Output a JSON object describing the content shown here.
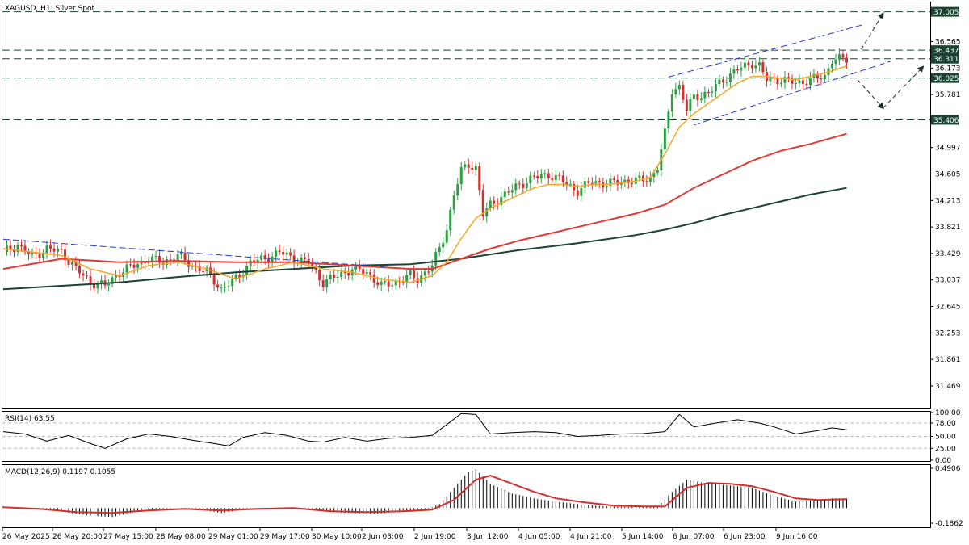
{
  "chart_title": "XAGUSD, H1:  Silver Spot",
  "colors": {
    "bull": "#2ea043",
    "bear": "#d32f2f",
    "ema_fast": "#f5a623",
    "ema_mid": "#e53935",
    "ema_slow": "#1b4332",
    "level_line": "#1b4332",
    "channel": "#2638c8",
    "macd_signal": "#d32f2f",
    "tag_bg": "#1b4332"
  },
  "price_axis": {
    "ylim": [
      31.17,
      37.12
    ],
    "ticks": [
      "36.565",
      "36.173",
      "35.781",
      "34.997",
      "34.605",
      "34.213",
      "33.821",
      "33.429",
      "33.037",
      "32.645",
      "32.253",
      "31.861",
      "31.469"
    ]
  },
  "level_tags": [
    "37.005",
    "36.437",
    "36.311",
    "36.025",
    "35.406"
  ],
  "x_axis": {
    "labels": [
      "26 May 2025",
      "26 May 20:00",
      "27 May 15:00",
      "28 May 08:00",
      "29 May 01:00",
      "29 May 17:00",
      "30 May 10:00",
      "2 Jun 03:00",
      "2 Jun 19:00",
      "3 Jun 12:00",
      "4 Jun 05:00",
      "4 Jun 21:00",
      "5 Jun 14:00",
      "6 Jun 07:00",
      "6 Jun 23:00",
      "9 Jun 16:00"
    ]
  },
  "rsi": {
    "title": "RSI(14) 63.55",
    "ylim": [
      0,
      100
    ],
    "ticks": [
      "100.00",
      "78.00",
      "50.00",
      "25.00",
      "0.00"
    ]
  },
  "macd": {
    "title": "MACD(12,26,9) 0.1197 0.1055",
    "ylim": [
      -0.1862,
      0.4906
    ],
    "ticks": [
      "0.4906",
      "-0.1862"
    ]
  },
  "chart_data": {
    "type": "line",
    "title": "XAGUSD, H1:  Silver Spot",
    "x_labels": [
      "26 May 2025",
      "26 May 20:00",
      "27 May 15:00",
      "28 May 08:00",
      "29 May 01:00",
      "29 May 17:00",
      "30 May 10:00",
      "2 Jun 03:00",
      "2 Jun 19:00",
      "3 Jun 12:00",
      "4 Jun 05:00",
      "4 Jun 21:00",
      "5 Jun 14:00",
      "6 Jun 07:00",
      "6 Jun 23:00",
      "9 Jun 16:00"
    ],
    "close_path": [
      [
        0,
        33.45
      ],
      [
        4,
        33.55
      ],
      [
        8,
        33.38
      ],
      [
        12,
        33.5
      ],
      [
        16,
        33.45
      ],
      [
        20,
        33.2
      ],
      [
        24,
        33.0
      ],
      [
        28,
        32.95
      ],
      [
        32,
        33.15
      ],
      [
        36,
        33.25
      ],
      [
        40,
        33.35
      ],
      [
        44,
        33.3
      ],
      [
        48,
        33.4
      ],
      [
        52,
        33.25
      ],
      [
        56,
        33.15
      ],
      [
        60,
        32.9
      ],
      [
        64,
        33.05
      ],
      [
        68,
        33.3
      ],
      [
        72,
        33.35
      ],
      [
        76,
        33.45
      ],
      [
        80,
        33.35
      ],
      [
        84,
        33.3
      ],
      [
        88,
        33.0
      ],
      [
        92,
        33.1
      ],
      [
        96,
        33.2
      ],
      [
        100,
        33.15
      ],
      [
        104,
        32.95
      ],
      [
        108,
        33.0
      ],
      [
        112,
        33.1
      ],
      [
        114,
        33.05
      ],
      [
        118,
        33.25
      ],
      [
        120,
        33.5
      ],
      [
        122,
        33.8
      ],
      [
        124,
        34.3
      ],
      [
        126,
        34.65
      ],
      [
        128,
        34.75
      ],
      [
        130,
        34.7
      ],
      [
        132,
        34.0
      ],
      [
        134,
        34.15
      ],
      [
        138,
        34.3
      ],
      [
        142,
        34.45
      ],
      [
        146,
        34.55
      ],
      [
        150,
        34.6
      ],
      [
        154,
        34.5
      ],
      [
        158,
        34.35
      ],
      [
        162,
        34.5
      ],
      [
        166,
        34.45
      ],
      [
        170,
        34.5
      ],
      [
        174,
        34.5
      ],
      [
        178,
        34.55
      ],
      [
        180,
        34.7
      ],
      [
        182,
        35.2
      ],
      [
        184,
        35.85
      ],
      [
        186,
        35.9
      ],
      [
        188,
        35.55
      ],
      [
        190,
        35.75
      ],
      [
        194,
        35.8
      ],
      [
        198,
        36.0
      ],
      [
        202,
        36.15
      ],
      [
        206,
        36.25
      ],
      [
        208,
        36.2
      ],
      [
        210,
        36.0
      ],
      [
        214,
        36.0
      ],
      [
        218,
        35.95
      ],
      [
        222,
        36.0
      ],
      [
        226,
        36.05
      ],
      [
        228,
        36.3
      ],
      [
        232,
        36.3
      ]
    ],
    "ema_fast": [
      [
        0,
        33.5
      ],
      [
        8,
        33.45
      ],
      [
        16,
        33.4
      ],
      [
        24,
        33.2
      ],
      [
        32,
        33.1
      ],
      [
        40,
        33.25
      ],
      [
        48,
        33.3
      ],
      [
        56,
        33.2
      ],
      [
        64,
        33.05
      ],
      [
        72,
        33.2
      ],
      [
        80,
        33.3
      ],
      [
        88,
        33.2
      ],
      [
        96,
        33.15
      ],
      [
        104,
        33.05
      ],
      [
        112,
        33.0
      ],
      [
        118,
        33.1
      ],
      [
        122,
        33.3
      ],
      [
        126,
        33.65
      ],
      [
        130,
        33.95
      ],
      [
        134,
        34.1
      ],
      [
        138,
        34.2
      ],
      [
        142,
        34.3
      ],
      [
        146,
        34.4
      ],
      [
        150,
        34.45
      ],
      [
        154,
        34.45
      ],
      [
        158,
        34.42
      ],
      [
        162,
        34.45
      ],
      [
        166,
        34.45
      ],
      [
        170,
        34.47
      ],
      [
        174,
        34.5
      ],
      [
        178,
        34.55
      ],
      [
        182,
        34.9
      ],
      [
        186,
        35.3
      ],
      [
        190,
        35.5
      ],
      [
        194,
        35.65
      ],
      [
        198,
        35.8
      ],
      [
        202,
        35.95
      ],
      [
        206,
        36.05
      ],
      [
        210,
        36.05
      ],
      [
        214,
        36.02
      ],
      [
        218,
        36.0
      ],
      [
        222,
        36.05
      ],
      [
        226,
        36.1
      ],
      [
        232,
        36.2
      ]
    ],
    "ema_mid": [
      [
        0,
        33.2
      ],
      [
        16,
        33.35
      ],
      [
        32,
        33.3
      ],
      [
        48,
        33.32
      ],
      [
        64,
        33.3
      ],
      [
        80,
        33.3
      ],
      [
        96,
        33.25
      ],
      [
        112,
        33.2
      ],
      [
        118,
        33.2
      ],
      [
        126,
        33.35
      ],
      [
        134,
        33.5
      ],
      [
        142,
        33.62
      ],
      [
        150,
        33.72
      ],
      [
        158,
        33.82
      ],
      [
        166,
        33.92
      ],
      [
        174,
        34.02
      ],
      [
        182,
        34.15
      ],
      [
        190,
        34.4
      ],
      [
        198,
        34.6
      ],
      [
        206,
        34.8
      ],
      [
        214,
        34.95
      ],
      [
        222,
        35.05
      ],
      [
        232,
        35.2
      ]
    ],
    "ema_slow": [
      [
        0,
        32.9
      ],
      [
        16,
        32.95
      ],
      [
        32,
        33.0
      ],
      [
        48,
        33.08
      ],
      [
        64,
        33.15
      ],
      [
        80,
        33.2
      ],
      [
        96,
        33.25
      ],
      [
        112,
        33.27
      ],
      [
        126,
        33.35
      ],
      [
        142,
        33.48
      ],
      [
        158,
        33.58
      ],
      [
        174,
        33.7
      ],
      [
        182,
        33.78
      ],
      [
        190,
        33.88
      ],
      [
        198,
        34.0
      ],
      [
        206,
        34.1
      ],
      [
        214,
        34.2
      ],
      [
        222,
        34.3
      ],
      [
        232,
        34.4
      ]
    ],
    "horizontal_levels": [
      37.005,
      36.437,
      36.311,
      36.025,
      35.406
    ],
    "trendline_down": [
      [
        0,
        33.64
      ],
      [
        105,
        33.23
      ]
    ],
    "channel_upper": [
      [
        183,
        36.04
      ],
      [
        237,
        36.82
      ]
    ],
    "channel_lower": [
      [
        190,
        35.33
      ],
      [
        244,
        36.27
      ]
    ],
    "forecast_up": [
      [
        236,
        36.45
      ],
      [
        242,
        36.98
      ]
    ],
    "forecast_down": [
      [
        235,
        36.0
      ],
      [
        242,
        35.58
      ],
      [
        253,
        36.19
      ]
    ],
    "rsi_path": [
      [
        0,
        60
      ],
      [
        6,
        55
      ],
      [
        12,
        40
      ],
      [
        18,
        52
      ],
      [
        24,
        35
      ],
      [
        28,
        25
      ],
      [
        34,
        45
      ],
      [
        40,
        55
      ],
      [
        46,
        50
      ],
      [
        52,
        42
      ],
      [
        58,
        35
      ],
      [
        62,
        30
      ],
      [
        66,
        48
      ],
      [
        72,
        58
      ],
      [
        78,
        52
      ],
      [
        84,
        40
      ],
      [
        88,
        38
      ],
      [
        94,
        48
      ],
      [
        100,
        40
      ],
      [
        106,
        46
      ],
      [
        112,
        48
      ],
      [
        118,
        52
      ],
      [
        122,
        75
      ],
      [
        126,
        98
      ],
      [
        130,
        96
      ],
      [
        134,
        55
      ],
      [
        140,
        58
      ],
      [
        146,
        60
      ],
      [
        152,
        58
      ],
      [
        158,
        50
      ],
      [
        164,
        52
      ],
      [
        170,
        55
      ],
      [
        176,
        56
      ],
      [
        182,
        60
      ],
      [
        186,
        96
      ],
      [
        190,
        70
      ],
      [
        196,
        78
      ],
      [
        202,
        85
      ],
      [
        208,
        78
      ],
      [
        212,
        70
      ],
      [
        218,
        55
      ],
      [
        224,
        62
      ],
      [
        228,
        68
      ],
      [
        232,
        64
      ]
    ],
    "macd_hist": [
      [
        0,
        0.02
      ],
      [
        8,
        0.0
      ],
      [
        14,
        -0.03
      ],
      [
        20,
        -0.07
      ],
      [
        26,
        -0.1
      ],
      [
        30,
        -0.11
      ],
      [
        36,
        -0.05
      ],
      [
        42,
        -0.02
      ],
      [
        48,
        0.0
      ],
      [
        54,
        -0.02
      ],
      [
        60,
        -0.06
      ],
      [
        66,
        -0.02
      ],
      [
        72,
        0.0
      ],
      [
        78,
        0.01
      ],
      [
        84,
        -0.01
      ],
      [
        90,
        -0.05
      ],
      [
        96,
        -0.06
      ],
      [
        102,
        -0.07
      ],
      [
        108,
        -0.05
      ],
      [
        112,
        -0.04
      ],
      [
        116,
        -0.03
      ],
      [
        120,
        0.05
      ],
      [
        124,
        0.25
      ],
      [
        128,
        0.45
      ],
      [
        130,
        0.48
      ],
      [
        134,
        0.3
      ],
      [
        140,
        0.18
      ],
      [
        146,
        0.12
      ],
      [
        152,
        0.08
      ],
      [
        158,
        0.05
      ],
      [
        166,
        0.02
      ],
      [
        174,
        0.01
      ],
      [
        180,
        0.02
      ],
      [
        184,
        0.2
      ],
      [
        188,
        0.35
      ],
      [
        194,
        0.3
      ],
      [
        200,
        0.28
      ],
      [
        206,
        0.25
      ],
      [
        212,
        0.15
      ],
      [
        218,
        0.08
      ],
      [
        224,
        0.1
      ],
      [
        228,
        0.12
      ],
      [
        232,
        0.12
      ]
    ],
    "macd_signal": [
      [
        0,
        0.01
      ],
      [
        10,
        -0.01
      ],
      [
        20,
        -0.05
      ],
      [
        30,
        -0.06
      ],
      [
        40,
        -0.03
      ],
      [
        50,
        -0.01
      ],
      [
        60,
        -0.03
      ],
      [
        70,
        -0.01
      ],
      [
        80,
        0.0
      ],
      [
        90,
        -0.04
      ],
      [
        100,
        -0.05
      ],
      [
        110,
        -0.04
      ],
      [
        118,
        -0.02
      ],
      [
        124,
        0.1
      ],
      [
        130,
        0.35
      ],
      [
        134,
        0.4
      ],
      [
        140,
        0.3
      ],
      [
        146,
        0.2
      ],
      [
        152,
        0.12
      ],
      [
        160,
        0.07
      ],
      [
        168,
        0.03
      ],
      [
        176,
        0.02
      ],
      [
        182,
        0.02
      ],
      [
        188,
        0.25
      ],
      [
        194,
        0.31
      ],
      [
        200,
        0.3
      ],
      [
        206,
        0.27
      ],
      [
        212,
        0.2
      ],
      [
        218,
        0.12
      ],
      [
        224,
        0.1
      ],
      [
        232,
        0.11
      ]
    ],
    "xlim": [
      0,
      255
    ],
    "ylim": [
      31.17,
      37.12
    ]
  }
}
